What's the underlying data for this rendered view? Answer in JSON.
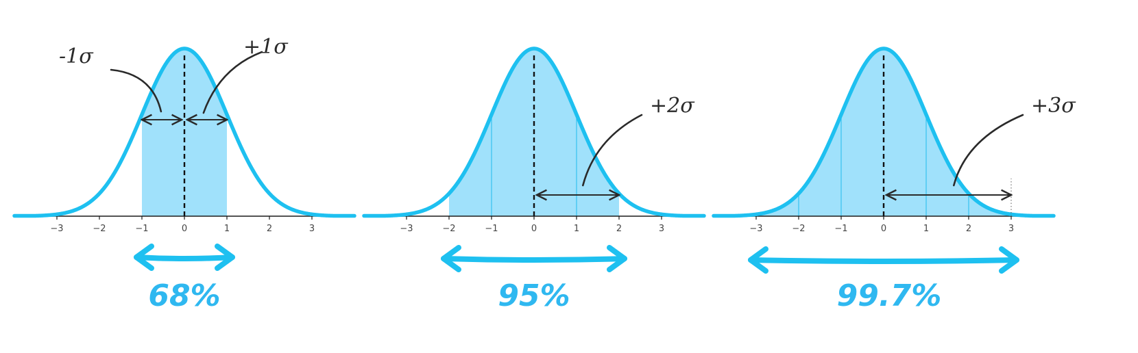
{
  "figure": {
    "accent_color": "#1ec0f0",
    "fill_color": "#8fdcfa",
    "divider_color": "#35c2f0",
    "ink_color": "#2a2a2a",
    "axis_ticks": [
      -3,
      -2,
      -1,
      0,
      1,
      2,
      3
    ],
    "x_range": [
      -4,
      4
    ],
    "panels": [
      {
        "shaded_range": [
          -1,
          1
        ],
        "dividers": [],
        "percent_label": "68%",
        "annotations": [
          {
            "text": "-1σ",
            "side": "left",
            "span": [
              -1,
              0
            ]
          },
          {
            "text": "+1σ",
            "side": "right",
            "span": [
              0,
              1
            ]
          }
        ]
      },
      {
        "shaded_range": [
          -2,
          2
        ],
        "dividers": [
          -1,
          1
        ],
        "percent_label": "95%",
        "annotations": [
          {
            "text": "+2σ",
            "side": "right",
            "span": [
              0,
              2
            ]
          }
        ]
      },
      {
        "shaded_range": [
          -3,
          3
        ],
        "dividers": [
          -2,
          -1,
          1,
          2
        ],
        "percent_label": "99.7%",
        "annotations": [
          {
            "text": "+3σ",
            "side": "right",
            "span": [
              0,
              3
            ]
          }
        ]
      }
    ]
  }
}
